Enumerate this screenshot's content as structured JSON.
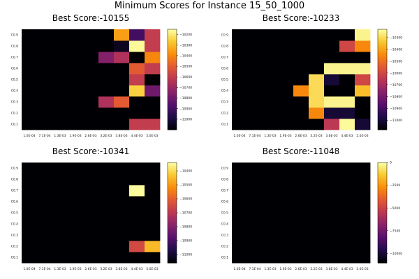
{
  "figure": {
    "title": "Minimum Scores for Instance 15_50_1000"
  },
  "chart_data": [
    {
      "type": "heatmap",
      "title": "Best Score:-10155",
      "x_ticks": [
        "1.0E-04",
        "7.1E-04",
        "1.3E-03",
        "1.9E-03",
        "2.6E-03",
        "3.2E-03",
        "3.8E-03",
        "4.4E-03",
        "5.0E-03"
      ],
      "y_ticks": [
        "C0.1",
        "C0.2",
        "C0.3",
        "C0.4",
        "C0.5",
        "C0.6",
        "C0.7",
        "C0.8",
        "C0.9"
      ],
      "colorbar": {
        "min": -11100,
        "max": -10150,
        "ticks": [
          -11000,
          -10900,
          -10800,
          -10700,
          -10600,
          -10500,
          -10400,
          -10300,
          -10200
        ]
      },
      "z": [
        [
          -11100,
          -11100,
          -11100,
          -11100,
          -11100,
          -11100,
          -11100,
          -10600,
          -10600
        ],
        [
          -11100,
          -11100,
          -11100,
          -11100,
          -11100,
          -11100,
          -11100,
          -11100,
          -11100
        ],
        [
          -11100,
          -11100,
          -11100,
          -11100,
          -11100,
          -10650,
          -10500,
          -11100,
          -11100
        ],
        [
          -11100,
          -11100,
          -11100,
          -11100,
          -11100,
          -11100,
          -11100,
          -10250,
          -10800
        ],
        [
          -11100,
          -11100,
          -11100,
          -11100,
          -11100,
          -11100,
          -11100,
          -10600,
          -11100
        ],
        [
          -11100,
          -11100,
          -11100,
          -11100,
          -11100,
          -11100,
          -11100,
          -10500,
          -10600
        ],
        [
          -11100,
          -11100,
          -11100,
          -11100,
          -11100,
          -10750,
          -10650,
          -11100,
          -10400
        ],
        [
          -11100,
          -11100,
          -11100,
          -11100,
          -11100,
          -11100,
          -11050,
          -10160,
          -10600
        ],
        [
          -11100,
          -11100,
          -11100,
          -11100,
          -11100,
          -11100,
          -10350,
          -10900,
          -10600
        ]
      ]
    },
    {
      "type": "heatmap",
      "title": "Best Score:-10233",
      "x_ticks": [
        "1.0E-04",
        "7.1E-04",
        "1.3E-03",
        "1.9E-03",
        "2.6E-03",
        "3.2E-03",
        "3.8E-03",
        "4.4E-03",
        "5.0E-03"
      ],
      "y_ticks": [
        "C0.1",
        "C0.2",
        "C0.3",
        "C0.4",
        "C0.5",
        "C0.6",
        "C0.7",
        "C0.8",
        "C0.9"
      ],
      "colorbar": {
        "min": -11080,
        "max": -10230,
        "ticks": [
          -11000,
          -10900,
          -10800,
          -10700,
          -10600,
          -10500,
          -10400,
          -10300
        ]
      },
      "z": [
        [
          -11080,
          -11080,
          -11080,
          -11080,
          -11080,
          -11080,
          -10650,
          -10240,
          -11000
        ],
        [
          -11080,
          -11080,
          -11080,
          -11080,
          -11080,
          -10450,
          -11000,
          -11000,
          -11080
        ],
        [
          -11080,
          -11080,
          -11080,
          -11080,
          -11080,
          -10300,
          -10250,
          -10250,
          -11080
        ],
        [
          -11080,
          -11080,
          -11080,
          -11080,
          -10450,
          -10300,
          -11080,
          -11080,
          -10350
        ],
        [
          -11080,
          -11080,
          -11080,
          -11080,
          -11080,
          -10300,
          -11000,
          -11080,
          -10600
        ],
        [
          -11080,
          -11080,
          -11080,
          -11080,
          -11080,
          -11080,
          -10250,
          -10250,
          -10250
        ],
        [
          -11080,
          -11080,
          -11080,
          -11080,
          -11080,
          -11080,
          -11080,
          -11080,
          -11080
        ],
        [
          -11080,
          -11080,
          -11080,
          -11080,
          -11080,
          -11080,
          -11080,
          -10600,
          -10450
        ],
        [
          -11080,
          -11080,
          -11080,
          -11080,
          -11080,
          -11080,
          -11080,
          -11080,
          -10250
        ]
      ]
    },
    {
      "type": "heatmap",
      "title": "Best Score:-10341",
      "x_ticks": [
        "1.0E-04",
        "7.1E-04",
        "1.3E-03",
        "1.9E-03",
        "2.6E-03",
        "3.2E-03",
        "3.8E-03",
        "4.4E-03",
        "5.0E-03"
      ],
      "y_ticks": [
        "C0.1",
        "C0.2",
        "C0.3",
        "C0.4",
        "C0.5",
        "C0.6",
        "C0.7",
        "C0.8",
        "C0.9"
      ],
      "colorbar": {
        "min": -11060,
        "max": -10340,
        "ticks": [
          -11000,
          -10900,
          -10800,
          -10700,
          -10600,
          -10500,
          -10400
        ]
      },
      "z": [
        [
          -11060,
          -11060,
          -11060,
          -11060,
          -11060,
          -11060,
          -11060,
          -11060,
          -11060
        ],
        [
          -11060,
          -11060,
          -11060,
          -11060,
          -11060,
          -11060,
          -11060,
          -10650,
          -10450
        ],
        [
          -11060,
          -11060,
          -11060,
          -11060,
          -11060,
          -11060,
          -11060,
          -11060,
          -11060
        ],
        [
          -11060,
          -11060,
          -11060,
          -11060,
          -11060,
          -11060,
          -11060,
          -11060,
          -11060
        ],
        [
          -11060,
          -11060,
          -11060,
          -11060,
          -11060,
          -11060,
          -11060,
          -11060,
          -11060
        ],
        [
          -11060,
          -11060,
          -11060,
          -11060,
          -11060,
          -11060,
          -11060,
          -11060,
          -11060
        ],
        [
          -11060,
          -11060,
          -11060,
          -11060,
          -11060,
          -11060,
          -11060,
          -10345,
          -11060
        ],
        [
          -11060,
          -11060,
          -11060,
          -11060,
          -11060,
          -11060,
          -11060,
          -11060,
          -11060
        ],
        [
          -11060,
          -11060,
          -11060,
          -11060,
          -11060,
          -11060,
          -11060,
          -11060,
          -11060
        ]
      ]
    },
    {
      "type": "heatmap",
      "title": "Best Score:-11048",
      "x_ticks": [
        "1.0E-04",
        "7.1E-04",
        "1.3E-03",
        "1.9E-03",
        "2.6E-03",
        "3.2E-03",
        "3.8E-03",
        "4.4E-03",
        "5.0E-03"
      ],
      "y_ticks": [
        "C0.1",
        "C0.2",
        "C0.3",
        "C0.4",
        "C0.5",
        "C0.6",
        "C0.7",
        "C0.8",
        "C0.9"
      ],
      "colorbar": {
        "min": -11050,
        "max": 0,
        "ticks": [
          0,
          -2500,
          -5000,
          -7500,
          -10000
        ]
      },
      "z": [
        [
          -11048,
          -11048,
          -11048,
          -11048,
          -11048,
          -11048,
          -11048,
          -11048,
          -11048
        ],
        [
          -11048,
          -11048,
          -11048,
          -11048,
          -11048,
          -11048,
          -11048,
          -11048,
          -11048
        ],
        [
          -11048,
          -11048,
          -11048,
          -11048,
          -11048,
          -11048,
          -11048,
          -11048,
          -11048
        ],
        [
          -11048,
          -11048,
          -11048,
          -11048,
          -11048,
          -11048,
          -11048,
          -11048,
          -11048
        ],
        [
          -11048,
          -11048,
          -11048,
          -11048,
          -11048,
          -11048,
          -11048,
          -11048,
          -11048
        ],
        [
          -11048,
          -11048,
          -11048,
          -11048,
          -11048,
          -11048,
          -11048,
          -11048,
          -11048
        ],
        [
          -11048,
          -11048,
          -11048,
          -11048,
          -11048,
          -11048,
          -11048,
          -11048,
          -11048
        ],
        [
          -11048,
          -11048,
          -11048,
          -11048,
          -11048,
          -11048,
          -11048,
          -11048,
          -11048
        ],
        [
          -11048,
          -11048,
          -11048,
          -11048,
          -11048,
          -11048,
          -11048,
          -11048,
          -11048
        ]
      ]
    }
  ]
}
